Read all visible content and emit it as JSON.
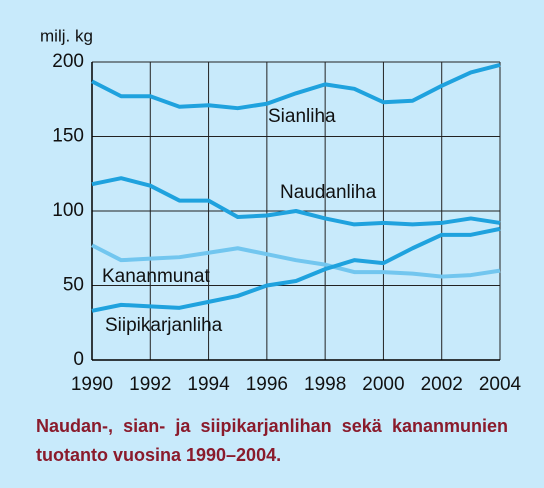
{
  "chart_data": {
    "type": "line",
    "ylabel": "milj. kg",
    "caption": "Naudan-, sian- ja siipikarjanlihan sekä kananmunien tuotanto vuosina 1990–2004.",
    "x": [
      1990,
      1991,
      1992,
      1993,
      1994,
      1995,
      1996,
      1997,
      1998,
      1999,
      2000,
      2001,
      2002,
      2003,
      2004
    ],
    "series": [
      {
        "name": "Sianliha",
        "color": "#1fa2de",
        "values": [
          187,
          177,
          177,
          170,
          171,
          169,
          172,
          179,
          185,
          182,
          173,
          174,
          184,
          193,
          198
        ]
      },
      {
        "name": "Naudanliha",
        "color": "#1fa2de",
        "values": [
          118,
          122,
          117,
          107,
          107,
          96,
          97,
          100,
          95,
          91,
          92,
          91,
          92,
          95,
          92
        ]
      },
      {
        "name": "Kananmunat",
        "color": "#72c6ef",
        "values": [
          77,
          67,
          68,
          69,
          72,
          75,
          71,
          67,
          64,
          59,
          59,
          58,
          56,
          57,
          60
        ]
      },
      {
        "name": "Siipikarjanliha",
        "color": "#1fa2de",
        "values": [
          33,
          37,
          36,
          35,
          39,
          43,
          50,
          53,
          61,
          67,
          65,
          75,
          84,
          84,
          88
        ]
      }
    ],
    "xlim": [
      1990,
      2004
    ],
    "xticks": [
      1990,
      1992,
      1994,
      1996,
      1998,
      2000,
      2002,
      2004
    ],
    "ylim": [
      0,
      200
    ],
    "yticks": [
      0,
      50,
      100,
      150,
      200
    ],
    "grid": true
  }
}
